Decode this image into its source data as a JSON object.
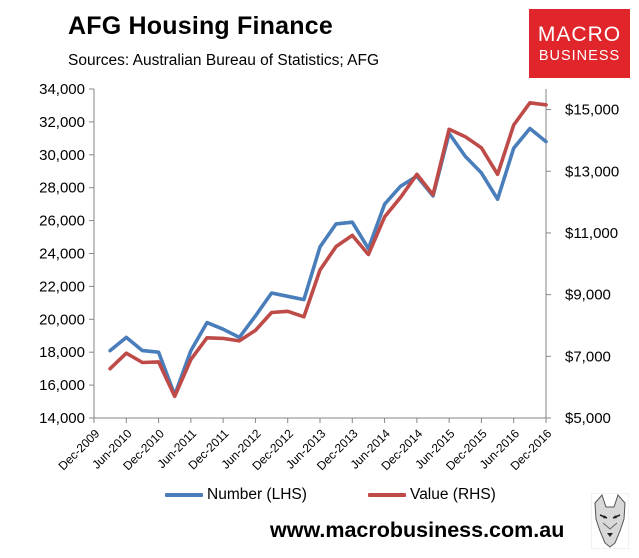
{
  "header": {
    "title": "AFG Housing Finance",
    "subtitle": "Sources: Australian Bureau of Statistics; AFG"
  },
  "logo": {
    "line1": "MACRO",
    "line2": "BUSINESS",
    "color": "#e0262b"
  },
  "footer": {
    "url": "www.macrobusiness.com.au",
    "mascot_icon": "wolf-head-icon"
  },
  "chart_data": {
    "type": "line",
    "title": "AFG Housing Finance",
    "x_ticks": [
      "Dec-2009",
      "Jun-2010",
      "Dec-2010",
      "Jun-2011",
      "Dec-2011",
      "Jun-2012",
      "Dec-2012",
      "Jun-2013",
      "Dec-2013",
      "Jun-2014",
      "Dec-2014",
      "Jun-2015",
      "Dec-2015",
      "Jun-2016",
      "Dec-2016"
    ],
    "x_range": [
      "2009-12",
      "2016-12"
    ],
    "y_left": {
      "ticks": [
        "14,000",
        "16,000",
        "18,000",
        "20,000",
        "22,000",
        "24,000",
        "26,000",
        "28,000",
        "30,000",
        "32,000",
        "34,000"
      ],
      "ylim": [
        14000,
        34000
      ]
    },
    "y_right": {
      "ticks": [
        "$5,000",
        "$7,000",
        "$9,000",
        "$11,000",
        "$13,000",
        "$15,000"
      ],
      "ylim": [
        5000,
        15667
      ]
    },
    "grid": false,
    "legend_position": "bottom",
    "series": [
      {
        "name": "Number (LHS)",
        "axis": "left",
        "color": "#4a7ebb",
        "x": [
          "2010-03",
          "2010-06",
          "2010-09",
          "2010-12",
          "2011-03",
          "2011-06",
          "2011-09",
          "2011-12",
          "2012-03",
          "2012-06",
          "2012-09",
          "2012-12",
          "2013-03",
          "2013-06",
          "2013-09",
          "2013-12",
          "2014-03",
          "2014-06",
          "2014-09",
          "2014-12",
          "2015-03",
          "2015-06",
          "2015-09",
          "2015-12",
          "2016-03",
          "2016-06",
          "2016-09",
          "2016-12"
        ],
        "values": [
          18100,
          18900,
          18100,
          18000,
          15400,
          18100,
          19800,
          19400,
          18900,
          20200,
          21600,
          21400,
          21200,
          24400,
          25800,
          25900,
          24300,
          27000,
          28100,
          28700,
          27500,
          31300,
          29900,
          28900,
          27300,
          30400,
          31600,
          30800
        ]
      },
      {
        "name": "Value (RHS)",
        "axis": "right",
        "color": "#be4b48",
        "x": [
          "2010-03",
          "2010-06",
          "2010-09",
          "2010-12",
          "2011-03",
          "2011-06",
          "2011-09",
          "2011-12",
          "2012-03",
          "2012-06",
          "2012-09",
          "2012-12",
          "2013-03",
          "2013-06",
          "2013-09",
          "2013-12",
          "2014-03",
          "2014-06",
          "2014-09",
          "2014-12",
          "2015-03",
          "2015-06",
          "2015-09",
          "2015-12",
          "2016-03",
          "2016-06",
          "2016-09",
          "2016-12"
        ],
        "values": [
          6600,
          7100,
          6800,
          6820,
          5700,
          6900,
          7600,
          7580,
          7500,
          7840,
          8420,
          8460,
          8280,
          9800,
          10560,
          10920,
          10300,
          11520,
          12160,
          12900,
          12240,
          14360,
          14120,
          13760,
          12900,
          14500,
          15220,
          15150
        ]
      }
    ]
  }
}
